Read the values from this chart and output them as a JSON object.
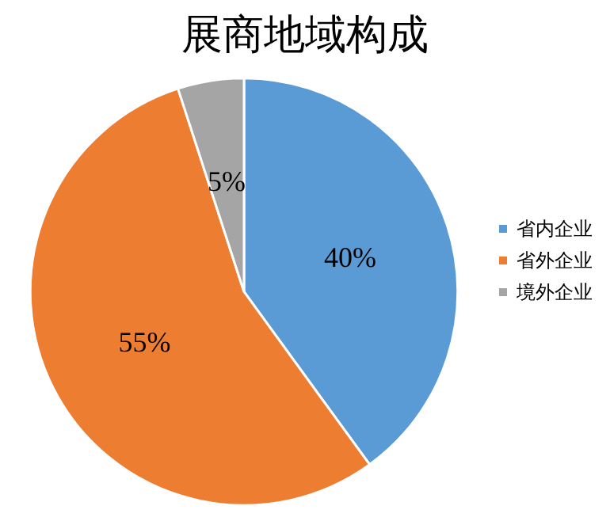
{
  "chart_data": {
    "type": "pie",
    "title": "展商地域构成",
    "categories": [
      "省内企业",
      "省外企业",
      "境外企业"
    ],
    "values": [
      40,
      55,
      5
    ],
    "colors": [
      "#5b9bd5",
      "#ed7d31",
      "#a5a5a5"
    ],
    "value_labels": [
      "40%",
      "55%",
      "5%"
    ],
    "legend": "right"
  }
}
